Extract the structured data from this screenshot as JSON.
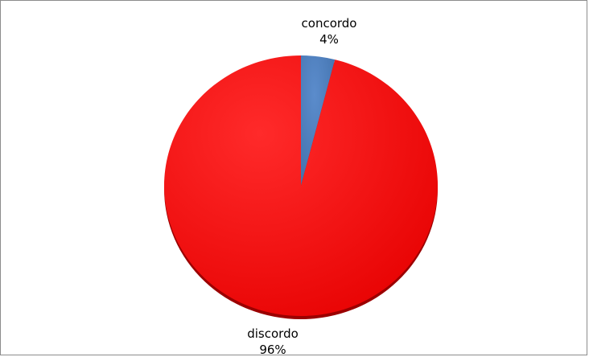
{
  "chart_data": {
    "type": "pie",
    "title": "",
    "legend": "none",
    "slices": [
      {
        "label": "concordo",
        "value": 4,
        "value_label": "4%",
        "color": "#4f81bd"
      },
      {
        "label": "discordo",
        "value": 96,
        "value_label": "96%",
        "color": "#ee0000"
      }
    ]
  }
}
